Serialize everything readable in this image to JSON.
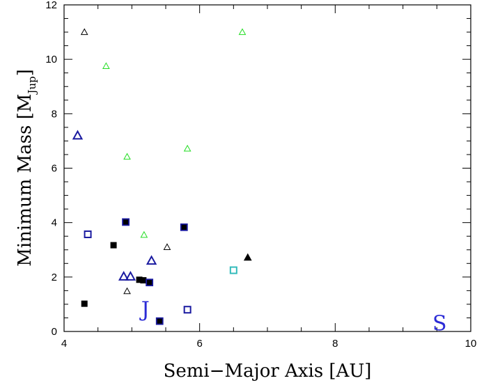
{
  "chart_data": {
    "type": "scatter",
    "title": "",
    "xlabel": "Semi−Major Axis [AU]",
    "ylabel_main": "Minimum Mass [M",
    "ylabel_sub": "Jup",
    "ylabel_end": "]",
    "xlim": [
      4,
      10
    ],
    "ylim": [
      0,
      12
    ],
    "x_ticks": [
      4,
      6,
      8,
      10
    ],
    "y_ticks": [
      0,
      2,
      4,
      6,
      8,
      10,
      12
    ],
    "grid": false,
    "legend": "none",
    "colors": {
      "black": "#000000",
      "green": "#22dd22",
      "blue": "#1a1aa0",
      "cyan": "#33bbbb",
      "letter": "#2b2bd6"
    },
    "series": [
      {
        "marker": "open-triangle-small",
        "color": "black",
        "points": [
          [
            4.3,
            11.0
          ],
          [
            4.93,
            1.48
          ],
          [
            5.52,
            3.1
          ]
        ]
      },
      {
        "marker": "open-triangle-small",
        "color": "green",
        "points": [
          [
            4.62,
            9.75
          ],
          [
            4.93,
            6.42
          ],
          [
            5.82,
            6.72
          ],
          [
            5.18,
            3.55
          ],
          [
            6.63,
            11.0
          ]
        ]
      },
      {
        "marker": "open-triangle-large",
        "color": "blue",
        "points": [
          [
            4.2,
            7.2
          ],
          [
            5.29,
            2.6
          ],
          [
            4.88,
            2.02
          ],
          [
            4.98,
            2.02
          ]
        ]
      },
      {
        "marker": "filled-square",
        "color": "black",
        "points": [
          [
            4.3,
            1.02
          ],
          [
            4.73,
            3.17
          ],
          [
            5.11,
            1.9
          ],
          [
            5.17,
            1.88
          ]
        ]
      },
      {
        "marker": "filled-square-blue-edge",
        "color": "blue",
        "points": [
          [
            4.91,
            4.02
          ],
          [
            5.26,
            1.8
          ],
          [
            5.41,
            0.38
          ],
          [
            5.77,
            3.83
          ]
        ]
      },
      {
        "marker": "open-square",
        "color": "blue",
        "points": [
          [
            4.35,
            3.57
          ],
          [
            5.82,
            0.8
          ]
        ]
      },
      {
        "marker": "open-square",
        "color": "cyan",
        "points": [
          [
            6.5,
            2.25
          ]
        ]
      },
      {
        "marker": "filled-triangle",
        "color": "black",
        "points": [
          [
            6.71,
            2.72
          ]
        ]
      }
    ],
    "letter_markers": [
      {
        "label": "J",
        "x": 5.2,
        "y": 0.8
      },
      {
        "label": "S",
        "x": 9.54,
        "y": 0.3
      }
    ]
  }
}
